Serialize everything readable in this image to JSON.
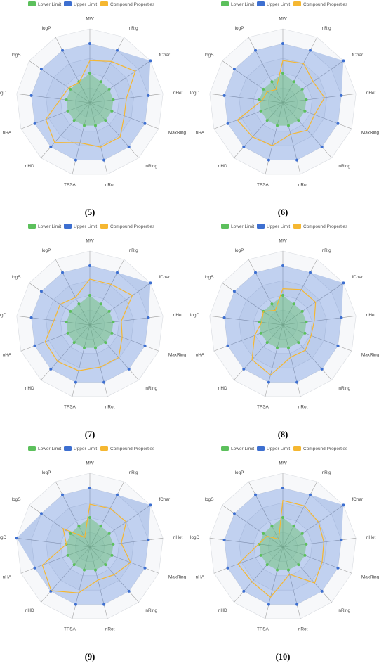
{
  "colors": {
    "lower": "#5cc05c",
    "upper": "#3d6fd0",
    "compound": "#f5b731",
    "grid": "#d8dbe0",
    "spoke": "#9a9a9a"
  },
  "legend": {
    "lower": "Lower Limit",
    "upper": "Upper Limit",
    "compound": "Compound Properties"
  },
  "axes": [
    "MW",
    "nRig",
    "fChar",
    "nHet",
    "MaxRing",
    "nRing",
    "nRot",
    "TPSA",
    "nHD",
    "nHA",
    "logD",
    "logS",
    "logP"
  ],
  "chart_data": [
    {
      "type": "radar",
      "label": "(5)",
      "lower": [
        0.4,
        0.32,
        0.32,
        0.32,
        0.32,
        0.32,
        0.32,
        0.32,
        0.32,
        0.32,
        0.32,
        0.32,
        0.32
      ],
      "upper": [
        0.8,
        0.8,
        1.0,
        0.8,
        0.8,
        0.8,
        0.8,
        0.8,
        0.8,
        0.8,
        0.8,
        0.8,
        0.8
      ],
      "compound": [
        0.57,
        0.63,
        0.75,
        0.5,
        0.5,
        0.62,
        0.62,
        0.56,
        0.72,
        0.64,
        0.4,
        0.35,
        0.31
      ]
    },
    {
      "type": "radar",
      "label": "(6)",
      "lower": [
        0.4,
        0.32,
        0.32,
        0.32,
        0.32,
        0.32,
        0.32,
        0.32,
        0.32,
        0.32,
        0.32,
        0.32,
        0.32
      ],
      "upper": [
        0.8,
        0.8,
        1.0,
        0.8,
        0.8,
        0.8,
        0.8,
        0.8,
        0.8,
        0.8,
        0.8,
        0.8,
        0.8
      ],
      "compound": [
        0.57,
        0.6,
        0.5,
        0.57,
        0.46,
        0.5,
        0.44,
        0.6,
        0.62,
        0.66,
        0.28,
        0.26,
        0.2
      ]
    },
    {
      "type": "radar",
      "label": "(7)",
      "lower": [
        0.4,
        0.32,
        0.32,
        0.32,
        0.32,
        0.32,
        0.32,
        0.32,
        0.32,
        0.32,
        0.32,
        0.32,
        0.32
      ],
      "upper": [
        0.8,
        0.8,
        1.0,
        0.8,
        0.8,
        0.8,
        0.8,
        0.8,
        0.8,
        0.8,
        0.8,
        0.8,
        0.8
      ],
      "compound": [
        0.62,
        0.62,
        0.7,
        0.43,
        0.47,
        0.59,
        0.59,
        0.64,
        0.66,
        0.65,
        0.49,
        0.49,
        0.42
      ]
    },
    {
      "type": "radar",
      "label": "(8)",
      "lower": [
        0.4,
        0.32,
        0.32,
        0.32,
        0.32,
        0.32,
        0.32,
        0.32,
        0.32,
        0.32,
        0.32,
        0.32,
        0.32
      ],
      "upper": [
        0.8,
        0.8,
        1.0,
        0.8,
        0.8,
        0.8,
        0.8,
        0.8,
        0.8,
        0.8,
        0.8,
        0.8,
        0.8
      ],
      "compound": [
        0.49,
        0.54,
        0.54,
        0.43,
        0.41,
        0.46,
        0.45,
        0.7,
        0.63,
        0.41,
        0.29,
        0.32,
        0.22
      ]
    },
    {
      "type": "radar",
      "label": "(9)",
      "lower": [
        0.4,
        0.32,
        0.32,
        0.32,
        0.32,
        0.32,
        0.32,
        0.32,
        0.32,
        0.32,
        0.32,
        0.32,
        0.32
      ],
      "upper": [
        0.8,
        0.8,
        1.0,
        0.8,
        0.8,
        0.8,
        0.8,
        0.8,
        0.8,
        0.8,
        1.0,
        0.8,
        0.8
      ],
      "compound": [
        0.58,
        0.59,
        0.6,
        0.43,
        0.59,
        0.5,
        0.46,
        0.64,
        0.79,
        0.69,
        0.32,
        0.44,
        0.15
      ]
    },
    {
      "type": "radar",
      "label": "(10)",
      "lower": [
        0.4,
        0.32,
        0.32,
        0.32,
        0.32,
        0.32,
        0.32,
        0.32,
        0.32,
        0.32,
        0.32,
        0.32,
        0.32
      ],
      "upper": [
        0.8,
        0.8,
        1.0,
        0.8,
        0.8,
        0.8,
        0.8,
        0.8,
        0.8,
        0.8,
        0.8,
        0.8,
        0.8
      ],
      "compound": [
        0.63,
        0.63,
        0.59,
        0.56,
        0.57,
        0.65,
        0.38,
        0.7,
        0.63,
        0.65,
        0.33,
        0.26,
        0.12
      ]
    }
  ]
}
